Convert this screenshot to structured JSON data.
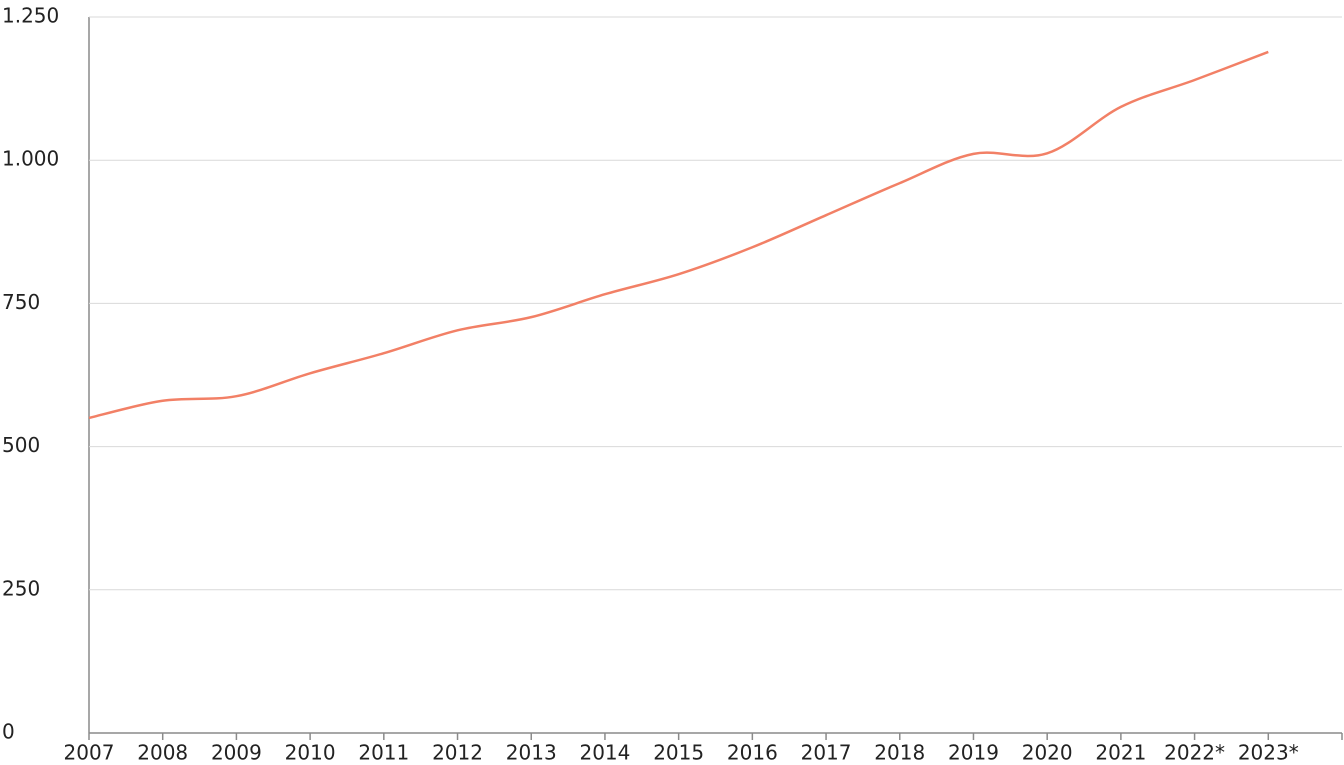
{
  "chart_data": {
    "type": "line",
    "categories": [
      "2007",
      "2008",
      "2009",
      "2010",
      "2011",
      "2012",
      "2013",
      "2014",
      "2015",
      "2016",
      "2017",
      "2018",
      "2019",
      "2020",
      "2021",
      "2022*",
      "2023*"
    ],
    "values": [
      550,
      580,
      588,
      628,
      663,
      703,
      726,
      766,
      801,
      848,
      904,
      960,
      1011,
      1012,
      1093,
      1140,
      1189
    ],
    "color": "#f28066",
    "ylim": [
      0,
      1250
    ],
    "yticks": [
      0,
      250,
      500,
      750,
      {
        "value": 1000,
        "label": "1.000"
      },
      {
        "value": 1250,
        "label": "1.250"
      }
    ],
    "grid": true
  }
}
